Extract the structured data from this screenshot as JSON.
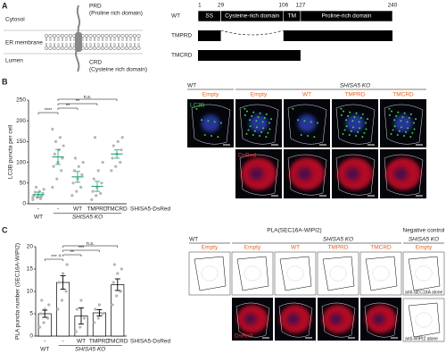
{
  "panel_a": {
    "letter": "A",
    "compartments": [
      "Cytosol",
      "ER membrane",
      "Lumen"
    ],
    "prd": [
      "PRD",
      "(Proline rich domain)"
    ],
    "crd": [
      "CRD",
      "(Cysteine rich domain)"
    ],
    "positions": [
      1,
      29,
      106,
      127,
      240
    ],
    "domains": [
      "SS",
      "Cysteine-rich domain",
      "TM",
      "Proline-rich domain"
    ],
    "constructs": [
      "WT",
      "TMPRD",
      "TMCRD"
    ]
  },
  "panel_b": {
    "letter": "B",
    "header": [
      "WT",
      "SHISA5 KO"
    ],
    "columns": [
      "Empty",
      "Empty",
      "WT",
      "TMPRD",
      "TMCRD"
    ],
    "channels": [
      "LC3B",
      "DsRed"
    ]
  },
  "panel_c": {
    "letter": "C",
    "title": "PLA(SEC16A-WIPI2)",
    "header": [
      "WT",
      "SHISA5 KO"
    ],
    "columns": [
      "Empty",
      "Empty",
      "WT",
      "TMPRD",
      "TMCRD"
    ],
    "channel": "DsRed",
    "negative": {
      "title": "Negative control",
      "header": "SHISA5 KO",
      "column": "Empty",
      "captions": [
        "anti-SEC16A alone",
        "anti-WIPI2 alone"
      ]
    }
  },
  "chart_data": [
    {
      "type": "dotplot",
      "y_label": "LC3B puncta per cell",
      "categories": [
        "-",
        "-",
        "WT",
        "TMPRD",
        "TMCRD"
      ],
      "groups": [
        "WT",
        "SHISA5 KO"
      ],
      "row_label": "SHISA5-DsRed",
      "values": [
        22,
        113,
        65,
        42,
        120
      ],
      "errors": [
        6,
        18,
        13,
        12,
        10
      ],
      "points": [
        [
          10,
          15,
          18,
          20,
          22,
          25,
          28,
          30,
          35,
          40,
          12,
          16
        ],
        [
          40,
          60,
          80,
          90,
          100,
          110,
          120,
          130,
          140,
          150,
          160,
          180
        ],
        [
          20,
          30,
          40,
          50,
          60,
          70,
          80,
          90,
          100,
          110
        ],
        [
          10,
          20,
          25,
          30,
          40,
          50,
          60,
          80,
          100,
          160
        ],
        [
          80,
          90,
          100,
          110,
          120,
          130,
          140,
          150,
          160
        ]
      ],
      "significance": [
        "****",
        "**",
        "**",
        "n.s."
      ],
      "color": "#2fa882",
      "point_color": "#b5b5b5",
      "ylim": [
        0,
        250
      ],
      "yticks": [
        0,
        50,
        100,
        150,
        200,
        250
      ]
    },
    {
      "type": "bar",
      "y_label": "PLA puncta number (SEC16A-WIPI2)",
      "categories": [
        "-",
        "-",
        "WT",
        "TMPRD",
        "TMCRD"
      ],
      "groups": [
        "WT",
        "SHISA5 KO"
      ],
      "row_label": "SHISA5-DsRed",
      "values": [
        5,
        12,
        4.5,
        5.2,
        11.5
      ],
      "errors": [
        0.8,
        1.5,
        1.8,
        0.7,
        1.3
      ],
      "points": [
        [
          2,
          3,
          4,
          5,
          6,
          7,
          8
        ],
        [
          6,
          8,
          10,
          12,
          14,
          16,
          18
        ],
        [
          1,
          2,
          4,
          6,
          8
        ],
        [
          3,
          4,
          5,
          6,
          7
        ],
        [
          7,
          9,
          10,
          12,
          14,
          15,
          16
        ]
      ],
      "significance": [
        "***",
        "**",
        "***",
        "n.s."
      ],
      "color": "#ffffff",
      "point_color": "#b5b5b5",
      "ylim": [
        0,
        20
      ],
      "yticks": [
        0,
        5,
        10,
        15,
        20
      ]
    }
  ]
}
